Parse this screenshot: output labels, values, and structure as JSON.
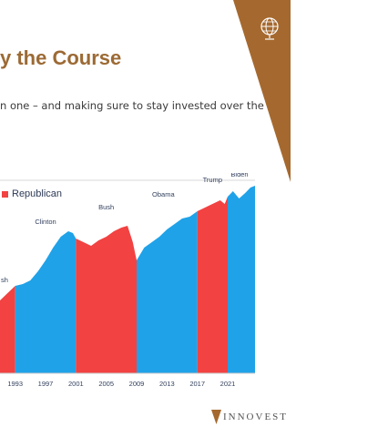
{
  "slide": {
    "title": "y the Course",
    "subtitle": "n one – and making sure to stay invested over the"
  },
  "brand": {
    "logo_text": "INNOVEST",
    "accent_color": "#a5692f"
  },
  "chart_data": {
    "type": "area",
    "x": [
      1993,
      1997,
      2001,
      2005,
      2009,
      2013,
      2017,
      2021
    ],
    "x_tick_labels": [
      "1993",
      "1997",
      "2001",
      "2005",
      "2009",
      "2013",
      "2017",
      "2021"
    ],
    "legend": [
      {
        "name": "Republican",
        "color": "#f24242"
      }
    ],
    "colors": {
      "Democratic": "#1fa2e8",
      "Republican": "#f24242"
    },
    "presidencies": [
      {
        "label": "sh",
        "party": "Republican",
        "start": 1989.0,
        "end": 1993.0
      },
      {
        "label": "Clinton",
        "party": "Democratic",
        "start": 1993.0,
        "end": 2001.0
      },
      {
        "label": "Bush",
        "party": "Republican",
        "start": 2001.0,
        "end": 2009.0
      },
      {
        "label": "Obama",
        "party": "Democratic",
        "start": 2009.0,
        "end": 2017.0
      },
      {
        "label": "Trump",
        "party": "Republican",
        "start": 2017.0,
        "end": 2021.0
      },
      {
        "label": "Biden",
        "party": "Democratic",
        "start": 2021.0,
        "end": 2024.6
      }
    ],
    "xlim": [
      1991.0,
      2024.6
    ],
    "ylim": [
      0,
      100
    ],
    "series_points": [
      [
        1991.0,
        40
      ],
      [
        1992.0,
        44
      ],
      [
        1993.0,
        48
      ],
      [
        1994.0,
        49
      ],
      [
        1995.0,
        51
      ],
      [
        1996.0,
        56
      ],
      [
        1997.0,
        62
      ],
      [
        1998.0,
        69
      ],
      [
        1999.0,
        75
      ],
      [
        2000.0,
        78
      ],
      [
        2000.6,
        77
      ],
      [
        2001.0,
        74
      ],
      [
        2002.0,
        72
      ],
      [
        2003.0,
        70
      ],
      [
        2004.0,
        73
      ],
      [
        2005.0,
        75
      ],
      [
        2006.0,
        78
      ],
      [
        2007.0,
        80
      ],
      [
        2007.8,
        81
      ],
      [
        2008.5,
        72
      ],
      [
        2009.0,
        62
      ],
      [
        2010.0,
        69
      ],
      [
        2011.0,
        72
      ],
      [
        2012.0,
        75
      ],
      [
        2013.0,
        79
      ],
      [
        2014.0,
        82
      ],
      [
        2015.0,
        85
      ],
      [
        2016.0,
        86
      ],
      [
        2017.0,
        89
      ],
      [
        2018.0,
        91
      ],
      [
        2019.0,
        93
      ],
      [
        2020.0,
        95
      ],
      [
        2020.6,
        93
      ],
      [
        2021.0,
        97
      ],
      [
        2021.7,
        100
      ],
      [
        2022.5,
        96
      ],
      [
        2023.3,
        99
      ],
      [
        2024.0,
        102
      ],
      [
        2024.6,
        103
      ]
    ]
  }
}
